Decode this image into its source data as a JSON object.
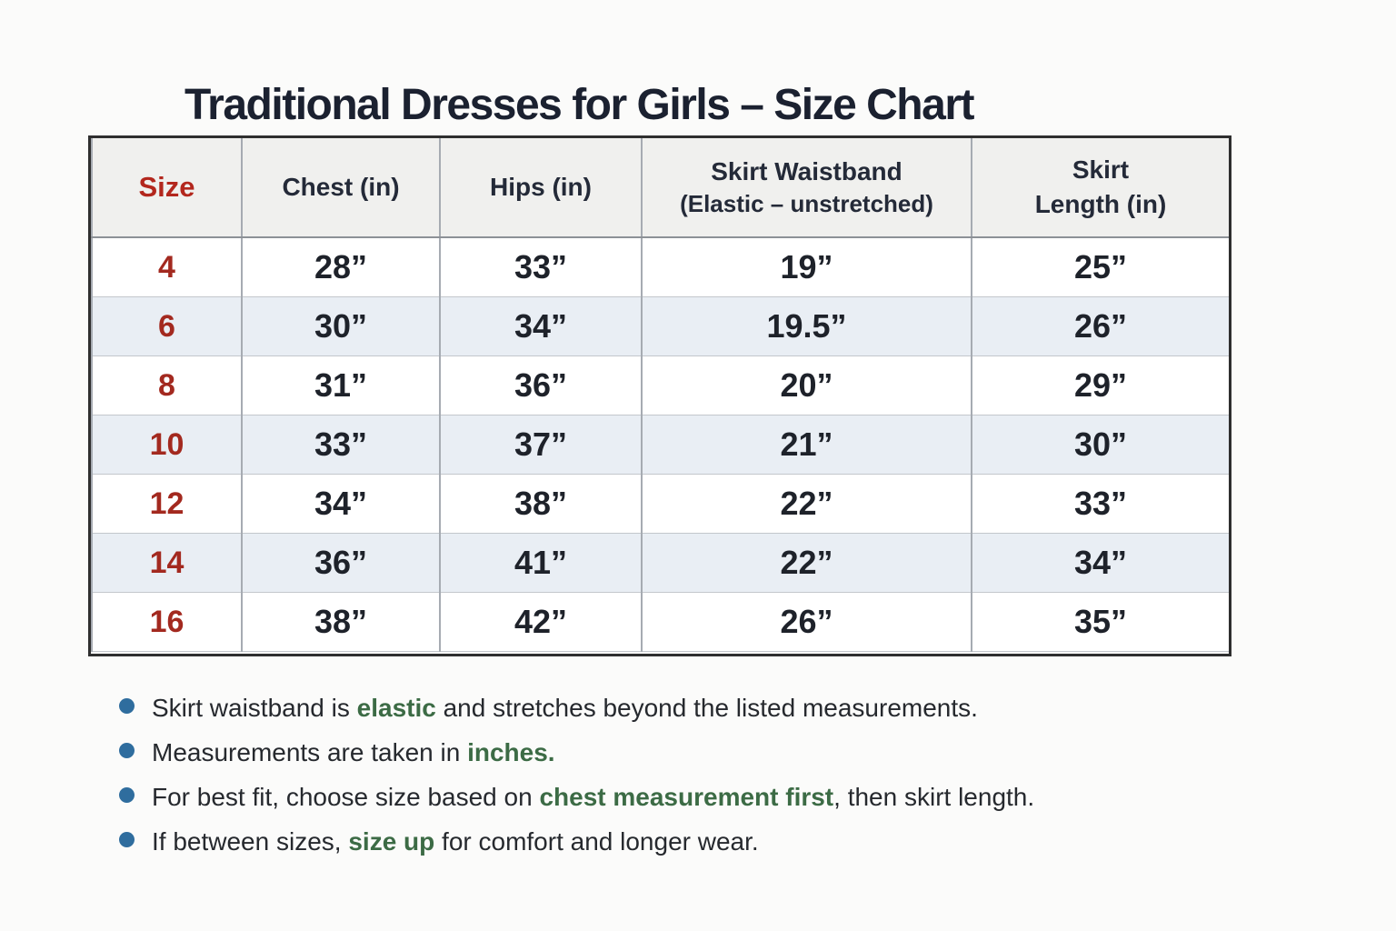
{
  "page": {
    "title": "Traditional Dresses for Girls – Size Chart"
  },
  "table": {
    "headers": {
      "size": "Size",
      "chest": "Chest (in)",
      "hips": "Hips (in)",
      "waistband_line1": "Skirt Waistband",
      "waistband_line2": "(Elastic – unstretched)",
      "length_line1": "Skirt",
      "length_line2": "Length (in)"
    },
    "rows": [
      {
        "size": "4",
        "chest": "28”",
        "hips": "33”",
        "waistband": "19”",
        "length": "25”"
      },
      {
        "size": "6",
        "chest": "30”",
        "hips": "34”",
        "waistband": "19.5”",
        "length": "26”"
      },
      {
        "size": "8",
        "chest": "31”",
        "hips": "36”",
        "waistband": "20”",
        "length": "29”"
      },
      {
        "size": "10",
        "chest": "33”",
        "hips": "37”",
        "waistband": "21”",
        "length": "30”"
      },
      {
        "size": "12",
        "chest": "34”",
        "hips": "38”",
        "waistband": "22”",
        "length": "33”"
      },
      {
        "size": "14",
        "chest": "36”",
        "hips": "41”",
        "waistband": "22”",
        "length": "34”"
      },
      {
        "size": "16",
        "chest": "38”",
        "hips": "42”",
        "waistband": "26”",
        "length": "35”"
      }
    ]
  },
  "notes": [
    {
      "pre": "Skirt waistband is ",
      "highlight": "elastic",
      "post": " and stretches beyond the listed measurements."
    },
    {
      "pre": "Measurements are taken in ",
      "highlight": "inches.",
      "post": ""
    },
    {
      "pre": "For best fit, choose size based on ",
      "highlight": "chest measurement first",
      "post": ", then skirt length."
    },
    {
      "pre": "If between sizes, ",
      "highlight": "size up",
      "post": " for comfort and longer wear."
    }
  ],
  "colors": {
    "title_text": "#1b2130",
    "header_text": "#242a38",
    "accent_red_header": "#b3271d",
    "accent_red_rows": "#a3291f",
    "highlight_green": "#3c6b45",
    "bullet_blue": "#2f6d9e",
    "header_bg": "#f0f0ee",
    "alt_row_bg": "#e9eef4",
    "outer_border": "#2f2f2f"
  },
  "chart_data": {
    "type": "table",
    "title": "Traditional Dresses for Girls – Size Chart",
    "columns": [
      "Size",
      "Chest (in)",
      "Hips (in)",
      "Skirt Waistband (Elastic – unstretched)",
      "Skirt Length (in)"
    ],
    "rows": [
      [
        4,
        28,
        33,
        19,
        25
      ],
      [
        6,
        30,
        34,
        19.5,
        26
      ],
      [
        8,
        31,
        36,
        20,
        29
      ],
      [
        10,
        33,
        37,
        21,
        30
      ],
      [
        12,
        34,
        38,
        22,
        33
      ],
      [
        14,
        36,
        41,
        22,
        34
      ],
      [
        16,
        38,
        42,
        26,
        35
      ]
    ],
    "units": "inches",
    "notes": [
      "Skirt waistband is elastic and stretches beyond the listed measurements.",
      "Measurements are taken in inches.",
      "For best fit, choose size based on chest measurement first, then skirt length.",
      "If between sizes, size up for comfort and longer wear."
    ]
  }
}
